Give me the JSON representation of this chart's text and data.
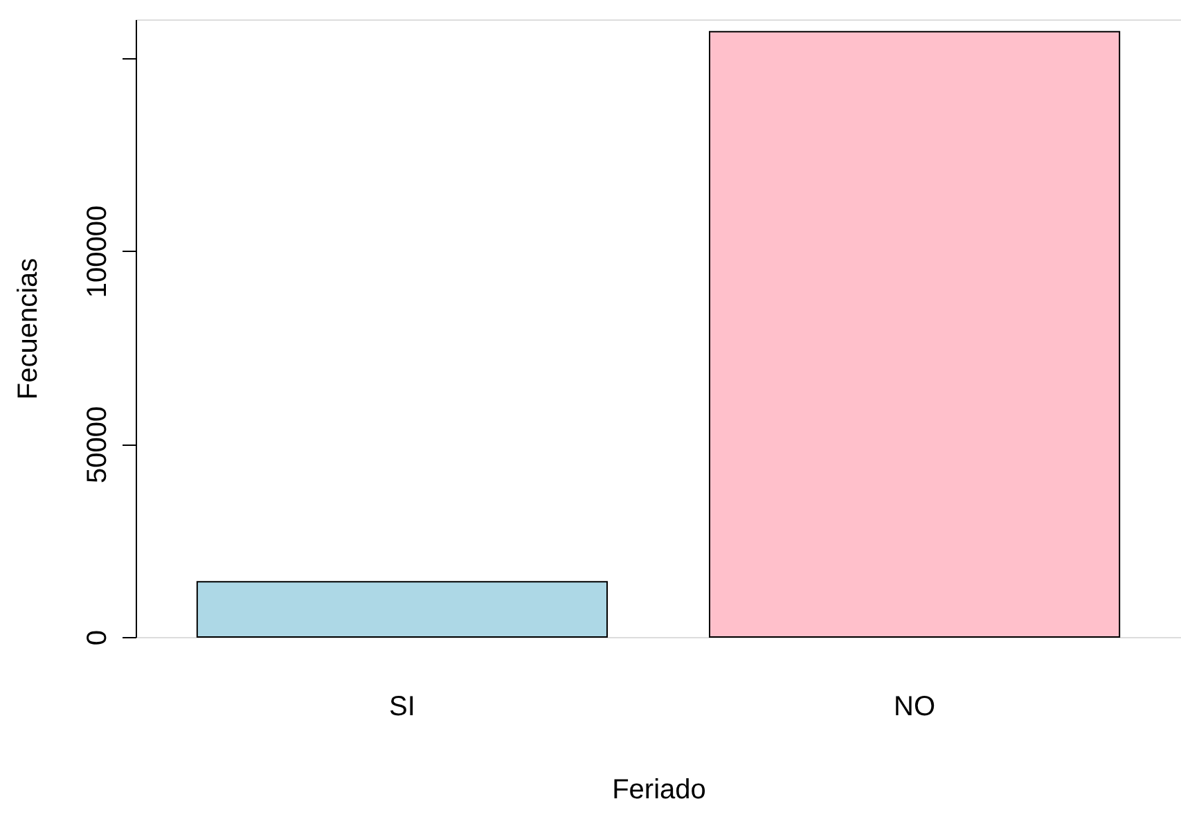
{
  "chart_data": {
    "type": "bar",
    "xlabel": "Feriado",
    "ylabel": "Fecuencias",
    "categories": [
      "SI",
      "NO"
    ],
    "values": [
      14300,
      156800
    ],
    "colors": [
      "#add8e6",
      "#ffc0cb"
    ],
    "ylim": [
      0,
      160000
    ],
    "yticks": [
      0,
      50000,
      100000,
      {
        "value": 150000,
        "label": null
      }
    ],
    "grid": false
  }
}
